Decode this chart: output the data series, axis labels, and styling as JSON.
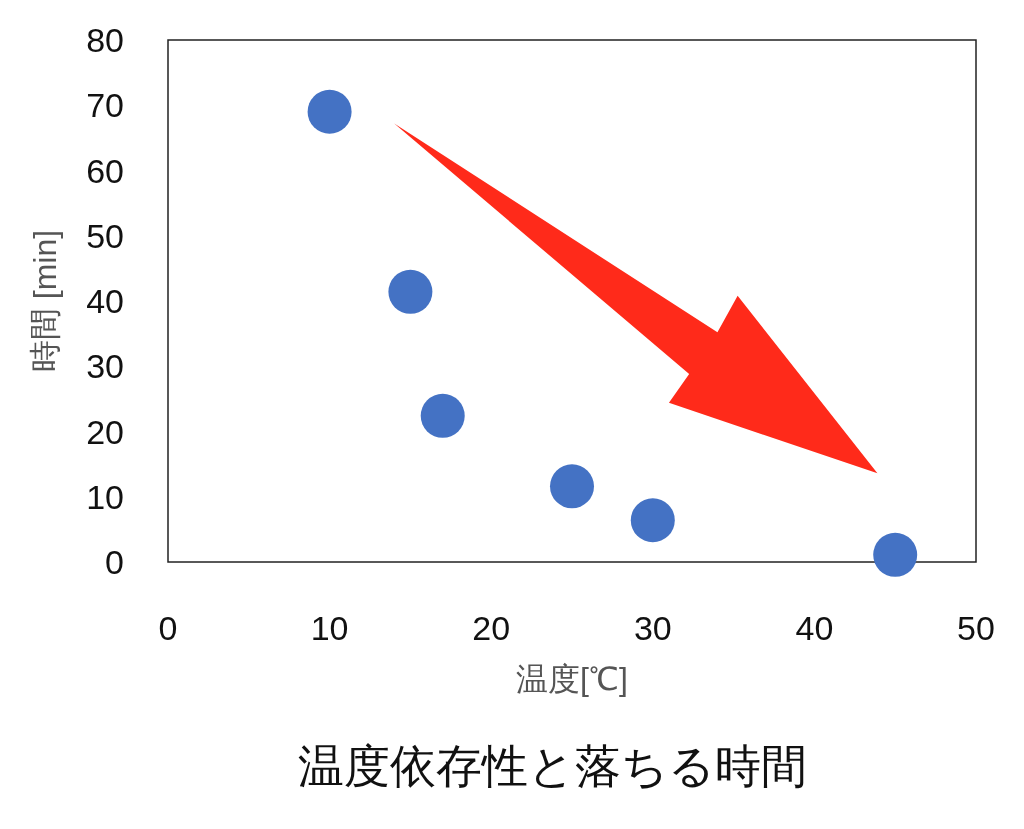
{
  "chart_data": {
    "type": "scatter",
    "title": "温度依存性と落ちる時間",
    "xlabel": "温度[℃]",
    "ylabel": "時間 [min]",
    "series": [
      {
        "color": "#4472c4",
        "x": [
          10,
          15,
          17,
          25,
          30,
          45
        ],
        "values": [
          69,
          41.4,
          22.4,
          11.6,
          6.4,
          1.1
        ]
      }
    ],
    "marker": "circle",
    "xlim": [
      0,
      50
    ],
    "ylim": [
      0,
      80
    ],
    "xticks": [
      0,
      10,
      20,
      30,
      40,
      50
    ],
    "yticks": [
      0,
      10,
      20,
      30,
      40,
      50,
      60,
      70,
      80
    ]
  }
}
